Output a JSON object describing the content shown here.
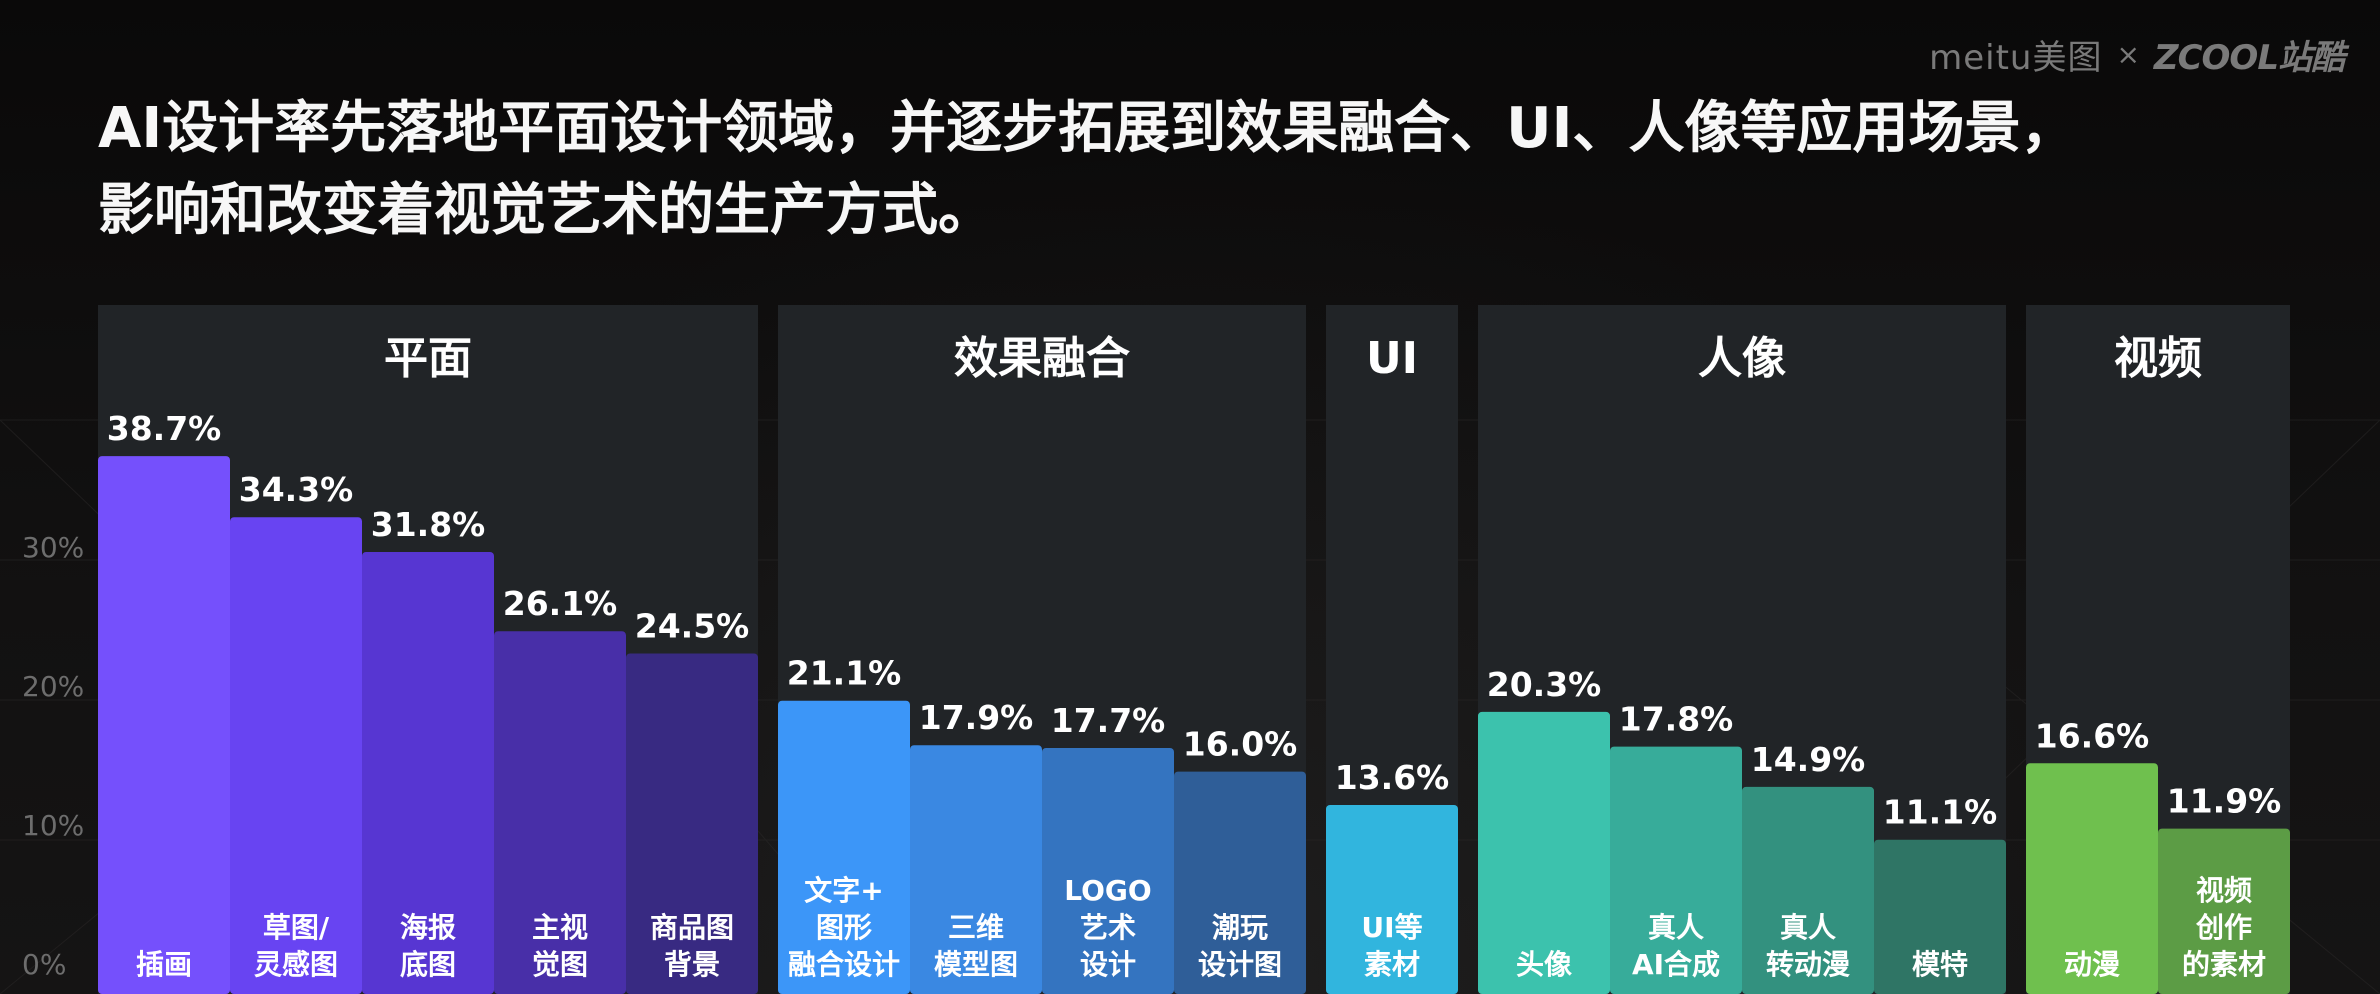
{
  "brand": {
    "meitu": "meitu美图",
    "separator": "×",
    "zcool": "ZCOOL站酷"
  },
  "headline": {
    "line1": "AI设计率先落地平面设计领域，并逐步拓展到效果融合、UI、人像等应用场景，",
    "line2": "影响和改变着视觉艺术的生产方式。"
  },
  "chart_data": {
    "type": "bar",
    "unit": "%",
    "ylim": [
      0,
      45
    ],
    "yticks": [
      "0%",
      "10%",
      "20%",
      "30%"
    ],
    "groups": [
      {
        "name": "平面",
        "bars": [
          {
            "label": [
              "插画"
            ],
            "value": 38.7,
            "value_label": "38.7%",
            "color": "#7550fc"
          },
          {
            "label": [
              "草图/",
              "灵感图"
            ],
            "value": 34.3,
            "value_label": "34.3%",
            "color": "#6844f2"
          },
          {
            "label": [
              "海报",
              "底图"
            ],
            "value": 31.8,
            "value_label": "31.8%",
            "color": "#5736d2"
          },
          {
            "label": [
              "主视",
              "觉图"
            ],
            "value": 26.1,
            "value_label": "26.1%",
            "color": "#482fa8"
          },
          {
            "label": [
              "商品图",
              "背景"
            ],
            "value": 24.5,
            "value_label": "24.5%",
            "color": "#382a82"
          }
        ]
      },
      {
        "name": "效果融合",
        "bars": [
          {
            "label": [
              "文字+",
              "图形",
              "融合设计"
            ],
            "value": 21.1,
            "value_label": "21.1%",
            "color": "#3c96f8"
          },
          {
            "label": [
              "三维",
              "模型图"
            ],
            "value": 17.9,
            "value_label": "17.9%",
            "color": "#3a88e2"
          },
          {
            "label": [
              "LOGO",
              "艺术",
              "设计"
            ],
            "value": 17.7,
            "value_label": "17.7%",
            "color": "#3474c0"
          },
          {
            "label": [
              "潮玩",
              "设计图"
            ],
            "value": 16.0,
            "value_label": "16.0%",
            "color": "#2f5e98"
          }
        ]
      },
      {
        "name": "UI",
        "bars": [
          {
            "label": [
              "UI等",
              "素材"
            ],
            "value": 13.6,
            "value_label": "13.6%",
            "color": "#31b5de"
          }
        ]
      },
      {
        "name": "人像",
        "bars": [
          {
            "label": [
              "头像"
            ],
            "value": 20.3,
            "value_label": "20.3%",
            "color": "#3cc2ad"
          },
          {
            "label": [
              "真人",
              "AI合成"
            ],
            "value": 17.8,
            "value_label": "17.8%",
            "color": "#37ac9a"
          },
          {
            "label": [
              "真人",
              "转动漫"
            ],
            "value": 14.9,
            "value_label": "14.9%",
            "color": "#33917f"
          },
          {
            "label": [
              "模特"
            ],
            "value": 11.1,
            "value_label": "11.1%",
            "color": "#2f7565"
          }
        ]
      },
      {
        "name": "视频",
        "bars": [
          {
            "label": [
              "动漫"
            ],
            "value": 16.6,
            "value_label": "16.6%",
            "color": "#6fc04e"
          },
          {
            "label": [
              "视频",
              "创作",
              "的素材"
            ],
            "value": 11.9,
            "value_label": "11.9%",
            "color": "#5c9c45"
          }
        ]
      }
    ]
  }
}
